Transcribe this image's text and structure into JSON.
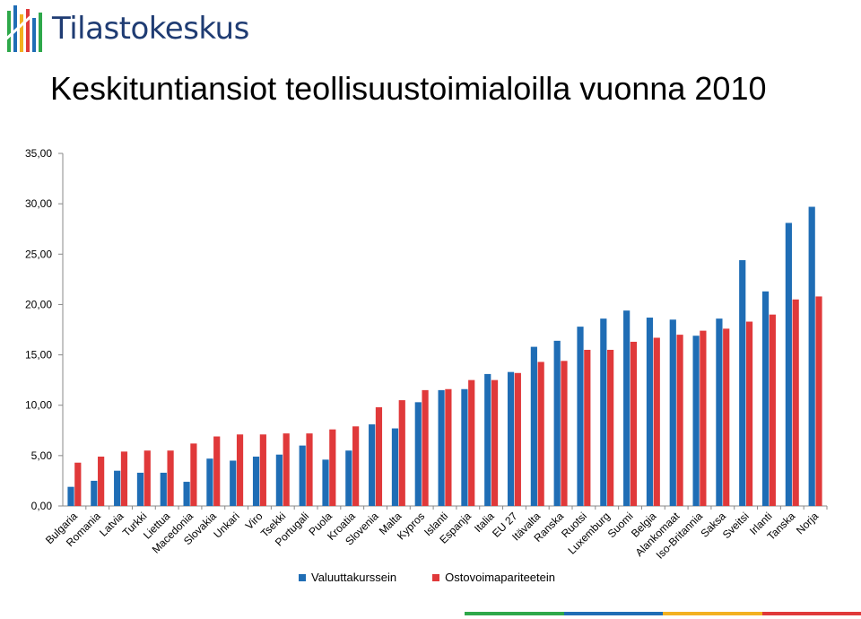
{
  "header": {
    "logo_text": "Tilastokeskus",
    "title": "Keskituntiansiot teollisuustoimialoilla vuonna 2010"
  },
  "colors": {
    "series1": "#1f6db5",
    "series2": "#e0393a",
    "logo_blue": "#1f3c73",
    "strip": [
      "#2ea84a",
      "#1f6db5",
      "#f3b120",
      "#e0393a"
    ]
  },
  "chart_data": {
    "type": "bar",
    "title": "Keskituntiansiot teollisuustoimialoilla vuonna 2010",
    "ylim": [
      0,
      35
    ],
    "yticks": [
      "0,00",
      "5,00",
      "10,00",
      "15,00",
      "20,00",
      "25,00",
      "30,00",
      "35,00"
    ],
    "grid": false,
    "legend_position": "bottom",
    "categories": [
      "Bulgaria",
      "Romania",
      "Latvia",
      "Turkki",
      "Liettua",
      "Macedonia",
      "Slovakia",
      "Unkari",
      "Viro",
      "Tsekki",
      "Portugali",
      "Puola",
      "Kroatia",
      "Slovenia",
      "Malta",
      "Kypros",
      "Islanti",
      "Espanja",
      "Italia",
      "EU 27",
      "Itävalta",
      "Ranska",
      "Ruotsi",
      "Luxemburg",
      "Suomi",
      "Belgia",
      "Alankomaat",
      "Iso-Britannia",
      "Saksa",
      "Sveitsi",
      "Irlanti",
      "Tanska",
      "Norja"
    ],
    "series": [
      {
        "name": "Valuuttakurssein",
        "values": [
          1.9,
          2.5,
          3.5,
          3.3,
          3.3,
          2.4,
          4.7,
          4.5,
          4.9,
          5.1,
          6.0,
          4.6,
          5.5,
          8.1,
          7.7,
          10.3,
          11.5,
          11.6,
          13.1,
          13.3,
          15.8,
          16.4,
          17.8,
          18.6,
          19.4,
          18.7,
          18.5,
          16.9,
          18.6,
          24.4,
          21.3,
          28.1,
          29.7
        ]
      },
      {
        "name": "Ostovoimapariteetein",
        "values": [
          4.3,
          4.9,
          5.4,
          5.5,
          5.5,
          6.2,
          6.9,
          7.1,
          7.1,
          7.2,
          7.2,
          7.6,
          7.9,
          9.8,
          10.5,
          11.5,
          11.6,
          12.5,
          12.5,
          13.2,
          14.3,
          14.4,
          15.5,
          15.5,
          16.3,
          16.7,
          17.0,
          17.4,
          17.6,
          18.3,
          19.0,
          20.5,
          20.8
        ]
      }
    ]
  }
}
